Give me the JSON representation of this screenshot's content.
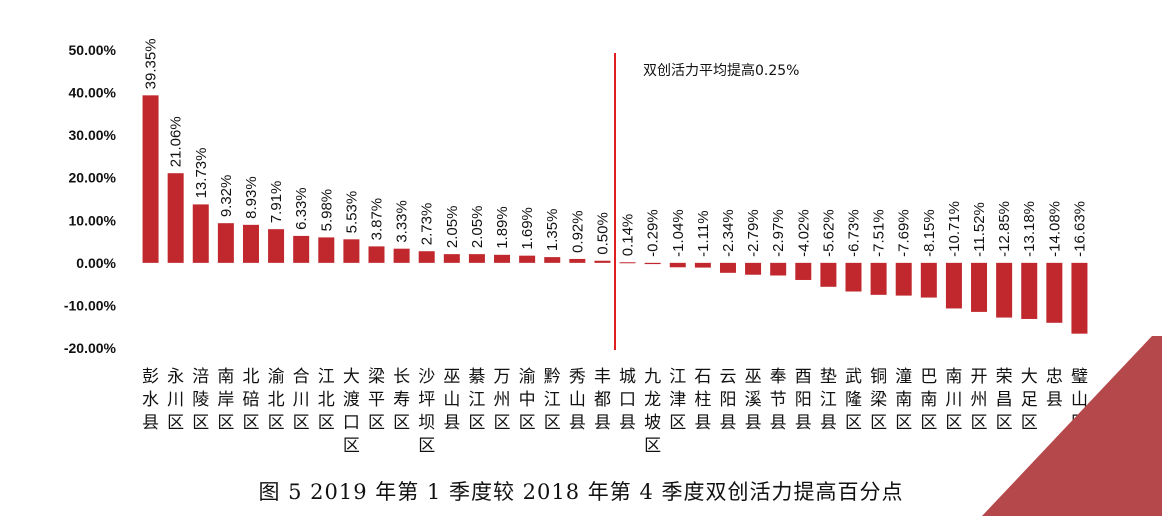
{
  "caption": "图 5 2019 年第 1 季度较 2018 年第 4 季度双创活力提高百分点",
  "accent_color": "#C0282D",
  "corner_color": "#B5484A",
  "chart_data": {
    "type": "bar",
    "title": "",
    "xlabel": "",
    "ylabel": "",
    "ylim": [
      -20,
      50
    ],
    "yticks": [
      "50.00%",
      "40.00%",
      "30.00%",
      "20.00%",
      "10.00%",
      "0.00%",
      "-10.00%",
      "-20.00%"
    ],
    "grid": false,
    "categories": [
      "彭水县",
      "永川区",
      "涪陵区",
      "南岸区",
      "北碚区",
      "渝北区",
      "合川区",
      "江北区",
      "大渡口区",
      "梁平区",
      "长寿区",
      "沙坪坝区",
      "巫山县",
      "綦江区",
      "万州区",
      "渝中区",
      "黔江区",
      "秀山县",
      "丰都县",
      "城口县",
      "九龙坡区",
      "江津区",
      "石柱县",
      "云阳县",
      "巫溪县",
      "奉节县",
      "酉阳县",
      "垫江县",
      "武隆区",
      "铜梁区",
      "潼南区",
      "巴南区",
      "南川区",
      "开州区",
      "荣昌区",
      "大足区",
      "忠县",
      "璧山区"
    ],
    "values": [
      39.35,
      21.06,
      13.73,
      9.32,
      8.93,
      7.91,
      6.33,
      5.98,
      5.53,
      3.87,
      3.33,
      2.73,
      2.05,
      2.05,
      1.89,
      1.69,
      1.35,
      0.92,
      0.5,
      0.14,
      -0.29,
      -1.04,
      -1.11,
      -2.34,
      -2.79,
      -2.97,
      -4.02,
      -5.62,
      -6.73,
      -7.51,
      -7.69,
      -8.15,
      -10.71,
      -11.52,
      -12.85,
      -13.18,
      -14.08,
      -16.63
    ],
    "data_labels": [
      "39.35%",
      "21.06%",
      "13.73%",
      "9.32%",
      "8.93%",
      "7.91%",
      "6.33%",
      "5.98%",
      "5.53%",
      "3.87%",
      "3.33%",
      "2.73%",
      "2.05%",
      "2.05%",
      "1.89%",
      "1.69%",
      "1.35%",
      "0.92%",
      "0.50%",
      "0.14%",
      "-0.29%",
      "-1.04%",
      "-1.11%",
      "-2.34%",
      "-2.79%",
      "-2.97%",
      "-4.02%",
      "-5.62%",
      "-6.73%",
      "-7.51%",
      "-7.69%",
      "-8.15%",
      "-10.71%",
      "-11.52%",
      "-12.85%",
      "-13.18%",
      "-14.08%",
      "-16.63%"
    ],
    "annotation": {
      "text": "双创活力平均提高0.25%",
      "marker_after_category": "丰都县",
      "color": "#E02020"
    }
  }
}
